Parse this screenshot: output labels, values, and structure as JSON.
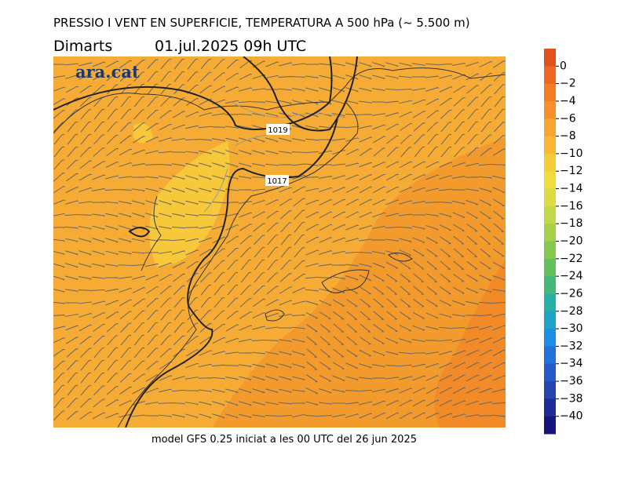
{
  "header": {
    "title": "PRESSIO I VENT EN SUPERFICIE, TEMPERATURA A 500 hPa (~ 5.500 m)",
    "day": "Dimarts",
    "date": "01.jul.2025 09h UTC"
  },
  "logo": "ara.cat",
  "isobars": [
    {
      "label": "1019"
    },
    {
      "label": "1017"
    }
  ],
  "footer": "model GFS 0.25 iniciat a les 00 UTC del 26 jun 2025",
  "colorbar": {
    "labels": [
      "0",
      "−2",
      "−4",
      "−6",
      "−8",
      "−10",
      "−12",
      "−14",
      "−16",
      "−18",
      "−20",
      "−22",
      "−24",
      "−26",
      "−28",
      "−30",
      "−32",
      "−34",
      "−36",
      "−38",
      "−40"
    ],
    "colors": [
      "#e2501c",
      "#ef6621",
      "#f47c24",
      "#f69129",
      "#f8a42f",
      "#f9b735",
      "#f6cb38",
      "#f0dc3c",
      "#dcdc42",
      "#c2d846",
      "#a6d04a",
      "#86c850",
      "#64c05c",
      "#44b878",
      "#26b0a8",
      "#1ca4cc",
      "#1c8ee4",
      "#2272dc",
      "#245ac8",
      "#2444b0",
      "#1e2c98",
      "#18147c"
    ]
  }
}
